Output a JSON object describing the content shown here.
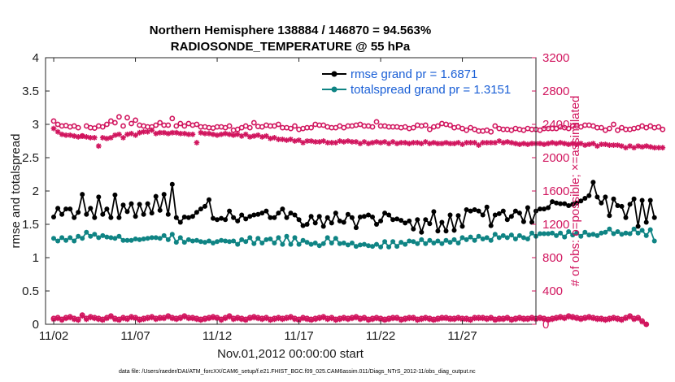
{
  "chart_data": {
    "type": "line",
    "title": [
      "Northern Hemisphere 138884 / 146870 = 94.563%",
      "RADIOSONDE_TEMPERATURE @ 55 hPa"
    ],
    "xlabel": "Nov.01,2012 00:00:00 start",
    "ylabel_left": "rmse and totalspread",
    "ylabel_right": "# of obs: o=possible; ×=assimilated",
    "footer": "data file: /Users/raeder/DAI/ATM_forcXX/CAM6_setup/f.e21.FHIST_BGC.f09_025.CAM6assim.011/Diags_NTrS_2012-11/obs_diag_output.nc",
    "x_tick_labels": [
      "11/02",
      "11/07",
      "11/12",
      "11/17",
      "11/22",
      "11/27"
    ],
    "x_tick_days": [
      1,
      6,
      11,
      16,
      21,
      26
    ],
    "xlim_days": [
      0.5,
      30.5
    ],
    "x_step_days": 0.25,
    "ylim_left": [
      0,
      4
    ],
    "yticks_left": [
      "0",
      "0.5",
      "1",
      "1.5",
      "2",
      "2.5",
      "3",
      "3.5",
      "4"
    ],
    "ylim_right": [
      0,
      3200
    ],
    "yticks_right": [
      "0",
      "400",
      "800",
      "1200",
      "1600",
      "2000",
      "2400",
      "2800",
      "3200"
    ],
    "colors": {
      "rmse": "#000000",
      "spread": "#0f8484",
      "obs": "#d1155e",
      "legend_text": "#1a5fd6",
      "axes": "#262626"
    },
    "series": [
      {
        "name": "rmse grand pr = 1.6871",
        "axis": "left",
        "values": [
          1.61,
          1.74,
          1.65,
          1.73,
          1.73,
          1.6,
          1.68,
          1.95,
          1.65,
          1.74,
          1.6,
          1.91,
          1.65,
          1.73,
          1.6,
          1.94,
          1.6,
          1.79,
          1.69,
          1.81,
          1.62,
          1.8,
          1.65,
          1.81,
          1.67,
          1.92,
          1.71,
          1.95,
          1.65,
          2.1,
          1.6,
          1.53,
          1.61,
          1.6,
          1.62,
          1.68,
          1.73,
          1.77,
          1.87,
          1.59,
          1.57,
          1.59,
          1.57,
          1.7,
          1.6,
          1.55,
          1.64,
          1.58,
          1.62,
          1.64,
          1.65,
          1.67,
          1.7,
          1.6,
          1.6,
          1.67,
          1.73,
          1.6,
          1.67,
          1.64,
          1.57,
          1.48,
          1.5,
          1.62,
          1.52,
          1.62,
          1.47,
          1.6,
          1.52,
          1.67,
          1.55,
          1.53,
          1.65,
          1.6,
          1.45,
          1.61,
          1.62,
          1.64,
          1.61,
          1.5,
          1.55,
          1.67,
          1.64,
          1.57,
          1.58,
          1.56,
          1.52,
          1.55,
          1.43,
          1.57,
          1.38,
          1.57,
          1.51,
          1.69,
          1.4,
          1.53,
          1.4,
          1.64,
          1.41,
          1.63,
          1.47,
          1.72,
          1.7,
          1.72,
          1.7,
          1.64,
          1.76,
          1.48,
          1.64,
          1.66,
          1.7,
          1.57,
          1.62,
          1.7,
          1.67,
          1.54,
          1.75,
          1.53,
          1.7,
          1.73,
          1.73,
          1.75,
          1.84,
          1.82,
          1.81,
          1.81,
          1.78,
          1.8,
          1.82,
          1.85,
          1.89,
          1.93,
          2.13,
          1.91,
          1.82,
          1.91,
          1.63,
          1.88,
          1.78,
          1.77,
          1.6,
          1.8,
          1.88,
          1.47,
          1.86,
          1.53,
          1.86,
          1.6
        ]
      },
      {
        "name": "totalspread grand pr = 1.3151",
        "axis": "left",
        "values": [
          1.29,
          1.25,
          1.3,
          1.26,
          1.3,
          1.25,
          1.32,
          1.29,
          1.38,
          1.32,
          1.35,
          1.3,
          1.33,
          1.31,
          1.3,
          1.29,
          1.32,
          1.26,
          1.26,
          1.26,
          1.28,
          1.27,
          1.28,
          1.29,
          1.3,
          1.3,
          1.29,
          1.33,
          1.27,
          1.35,
          1.23,
          1.3,
          1.23,
          1.27,
          1.25,
          1.26,
          1.24,
          1.23,
          1.25,
          1.22,
          1.24,
          1.26,
          1.25,
          1.24,
          1.25,
          1.2,
          1.27,
          1.24,
          1.3,
          1.21,
          1.29,
          1.22,
          1.27,
          1.28,
          1.22,
          1.3,
          1.2,
          1.32,
          1.2,
          1.3,
          1.2,
          1.26,
          1.23,
          1.2,
          1.22,
          1.18,
          1.21,
          1.3,
          1.22,
          1.29,
          1.21,
          1.22,
          1.19,
          1.22,
          1.17,
          1.19,
          1.2,
          1.18,
          1.17,
          1.2,
          1.16,
          1.24,
          1.16,
          1.24,
          1.17,
          1.23,
          1.2,
          1.25,
          1.24,
          1.21,
          1.27,
          1.21,
          1.26,
          1.22,
          1.25,
          1.21,
          1.26,
          1.23,
          1.27,
          1.22,
          1.3,
          1.27,
          1.31,
          1.26,
          1.32,
          1.28,
          1.3,
          1.26,
          1.35,
          1.3,
          1.33,
          1.3,
          1.34,
          1.28,
          1.33,
          1.3,
          1.28,
          1.37,
          1.32,
          1.36,
          1.36,
          1.36,
          1.37,
          1.33,
          1.37,
          1.31,
          1.39,
          1.34,
          1.37,
          1.32,
          1.38,
          1.34,
          1.35,
          1.33,
          1.37,
          1.38,
          1.43,
          1.36,
          1.39,
          1.35,
          1.37,
          1.36,
          1.43,
          1.37,
          1.41,
          1.33,
          1.42,
          1.25
        ]
      },
      {
        "name": "possible",
        "axis": "right",
        "marker": "circle",
        "values": [
          2440,
          2400,
          2380,
          2385,
          2370,
          2380,
          2360,
          2260,
          2380,
          2360,
          2355,
          2380,
          2370,
          2400,
          2440,
          2420,
          2490,
          2380,
          2480,
          2410,
          2450,
          2390,
          2380,
          2370,
          2370,
          2390,
          2420,
          2390,
          2390,
          2470,
          2380,
          2410,
          2380,
          2410,
          2390,
          2400,
          2370,
          2370,
          2360,
          2355,
          2370,
          2370,
          2360,
          2380,
          2330,
          2340,
          2360,
          2380,
          2360,
          2420,
          2375,
          2370,
          2390,
          2380,
          2380,
          2400,
          2360,
          2360,
          2350,
          2380,
          2340,
          2350,
          2360,
          2360,
          2400,
          2390,
          2390,
          2370,
          2360,
          2360,
          2380,
          2360,
          2380,
          2380,
          2390,
          2400,
          2380,
          2380,
          2370,
          2430,
          2380,
          2380,
          2370,
          2370,
          2370,
          2360,
          2370,
          2350,
          2360,
          2390,
          2380,
          2390,
          2340,
          2370,
          2380,
          2410,
          2400,
          2390,
          2360,
          2370,
          2350,
          2330,
          2360,
          2340,
          2320,
          2320,
          2330,
          2310,
          2380,
          2350,
          2340,
          2340,
          2330,
          2350,
          2340,
          2330,
          2350,
          2340,
          2340,
          2330,
          2350,
          2350,
          2350,
          2350,
          2370,
          2360,
          2350,
          2380,
          2380,
          2370,
          2390,
          2390,
          2380,
          2360,
          2360,
          2330,
          2350,
          2400,
          2330,
          2360,
          2340,
          2340,
          2350,
          2360,
          2380,
          2360,
          2380,
          2360,
          2370,
          2340
        ]
      },
      {
        "name": "assimilated",
        "axis": "right",
        "marker": "asterisk",
        "values": [
          2350,
          2310,
          2280,
          2270,
          2270,
          2260,
          2250,
          2260,
          2250,
          2240,
          2240,
          2140,
          2240,
          2230,
          2240,
          2270,
          2280,
          2240,
          2280,
          2290,
          2270,
          2300,
          2310,
          2310,
          2330,
          2290,
          2300,
          2300,
          2290,
          2300,
          2300,
          2290,
          2290,
          2280,
          2280,
          2180,
          2300,
          2290,
          2290,
          2280,
          2270,
          2280,
          2290,
          2280,
          2270,
          2280,
          2260,
          2280,
          2250,
          2260,
          2270,
          2250,
          2260,
          2230,
          2240,
          2220,
          2220,
          2210,
          2220,
          2200,
          2210,
          2180,
          2200,
          2200,
          2190,
          2190,
          2200,
          2180,
          2180,
          2180,
          2200,
          2190,
          2200,
          2190,
          2190,
          2170,
          2190,
          2170,
          2180,
          2190,
          2180,
          2190,
          2170,
          2190,
          2170,
          2180,
          2180,
          2170,
          2180,
          2180,
          2170,
          2190,
          2170,
          2180,
          2170,
          2170,
          2180,
          2170,
          2170,
          2180,
          2160,
          2180,
          2180,
          2180,
          2150,
          2180,
          2180,
          2180,
          2180,
          2200,
          2180,
          2190,
          2180,
          2170,
          2160,
          2170,
          2160,
          2170,
          2170,
          2170,
          2160,
          2170,
          2180,
          2170,
          2180,
          2170,
          2160,
          2170,
          2160,
          2170,
          2150,
          2160,
          2170,
          2140,
          2160,
          2160,
          2150,
          2150,
          2150,
          2140,
          2120,
          2140,
          2120,
          2140,
          2130,
          2140,
          2130,
          2120,
          2120,
          2120
        ]
      },
      {
        "name": "possible-bottom",
        "axis": "right",
        "marker": "circle",
        "values": [
          70,
          80,
          60,
          80,
          90,
          70,
          60,
          110,
          70,
          90,
          80,
          70,
          60,
          80,
          100,
          70,
          60,
          80,
          70,
          90,
          80,
          60,
          70,
          80,
          90,
          70,
          80,
          80,
          100,
          80,
          70,
          80,
          100,
          80,
          80,
          70,
          60,
          70,
          80,
          90,
          80,
          60,
          80,
          100,
          70,
          80,
          70,
          60,
          80,
          90,
          80,
          70,
          80,
          60,
          70,
          80,
          70,
          80,
          90,
          70,
          60,
          80,
          70,
          60,
          70,
          80,
          90,
          70,
          80,
          60,
          70,
          80,
          70,
          80,
          90,
          70,
          80,
          60,
          70,
          80,
          70,
          60,
          70,
          80,
          80,
          60,
          70,
          80,
          80,
          60,
          70,
          80,
          70,
          60,
          70,
          80,
          80,
          70,
          70,
          80,
          70,
          70,
          60,
          80,
          80,
          80,
          70,
          80,
          60,
          70,
          70,
          80,
          60,
          70,
          80,
          70,
          70,
          80,
          70,
          80,
          70,
          60,
          70,
          80,
          90,
          80,
          100,
          90,
          80,
          70,
          80,
          90,
          80,
          70,
          70,
          60,
          70,
          80,
          70,
          60,
          80,
          100,
          70,
          80,
          40,
          0
        ]
      },
      {
        "name": "assimilated-bottom",
        "axis": "right",
        "marker": "asterisk",
        "values": [
          60,
          70,
          50,
          70,
          80,
          60,
          50,
          100,
          60,
          80,
          70,
          60,
          50,
          70,
          90,
          60,
          50,
          70,
          60,
          80,
          70,
          50,
          60,
          70,
          80,
          60,
          70,
          70,
          90,
          70,
          60,
          70,
          90,
          70,
          70,
          60,
          50,
          60,
          70,
          80,
          70,
          50,
          70,
          90,
          60,
          70,
          60,
          50,
          70,
          80,
          70,
          60,
          70,
          50,
          60,
          70,
          60,
          70,
          80,
          60,
          50,
          70,
          60,
          50,
          60,
          70,
          80,
          60,
          70,
          50,
          60,
          70,
          60,
          70,
          80,
          60,
          70,
          50,
          60,
          70,
          60,
          50,
          60,
          70,
          70,
          50,
          60,
          70,
          70,
          50,
          60,
          70,
          60,
          50,
          60,
          70,
          70,
          60,
          60,
          70,
          60,
          60,
          50,
          70,
          70,
          70,
          60,
          70,
          50,
          60,
          60,
          70,
          50,
          60,
          70,
          60,
          60,
          70,
          60,
          70,
          60,
          50,
          60,
          70,
          80,
          70,
          90,
          80,
          70,
          60,
          70,
          80,
          70,
          60,
          60,
          50,
          60,
          70,
          60,
          50,
          70,
          90,
          60,
          70,
          30,
          0
        ]
      }
    ],
    "legend": {
      "position": "top-right",
      "entries": [
        "rmse grand pr = 1.6871",
        "totalspread grand pr = 1.3151"
      ]
    },
    "grid": false
  }
}
